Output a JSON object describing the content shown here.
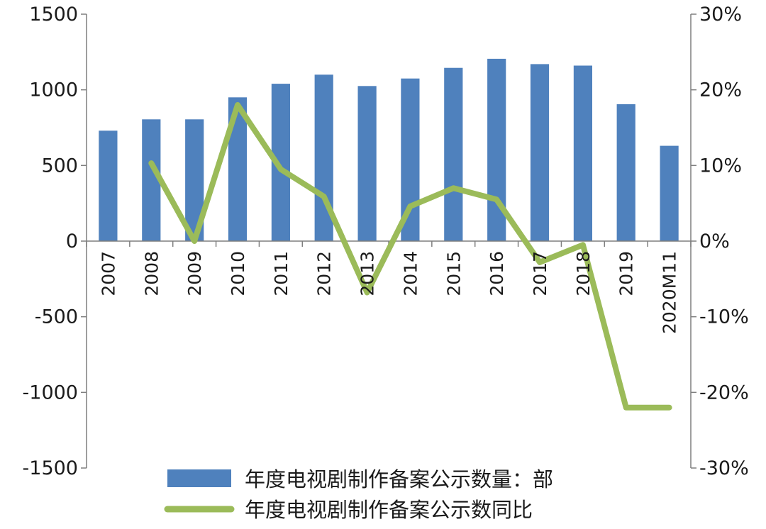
{
  "chart_data": {
    "type": "bar+line",
    "categories": [
      "2007",
      "2008",
      "2009",
      "2010",
      "2011",
      "2012",
      "2013",
      "2014",
      "2015",
      "2016",
      "2017",
      "2018",
      "2019",
      "2020M11"
    ],
    "series": [
      {
        "name": "年度电视剧制作备案公示数量：部",
        "type": "bar",
        "axis": "left",
        "color": "#4f81bd",
        "values": [
          730,
          805,
          805,
          950,
          1040,
          1100,
          1025,
          1075,
          1145,
          1205,
          1170,
          1160,
          905,
          630
        ]
      },
      {
        "name": "年度电视剧制作备案公示数同比",
        "type": "line",
        "axis": "right",
        "color": "#9bbb59",
        "values": [
          null,
          10.3,
          0.0,
          18.0,
          9.5,
          5.9,
          -6.8,
          4.6,
          7.0,
          5.5,
          -2.8,
          -0.5,
          -22.0,
          -22.0
        ]
      }
    ],
    "y_left": {
      "ylim": [
        -1500,
        1500
      ],
      "ticks": [
        "1500",
        "1000",
        "500",
        "0",
        "-500",
        "-1000",
        "-1500"
      ]
    },
    "y_right": {
      "ylim": [
        -30,
        30
      ],
      "ticks": [
        "30%",
        "20%",
        "10%",
        "0%",
        "-10%",
        "-20%",
        "-30%"
      ]
    },
    "grid": false,
    "legend_position": "bottom-center"
  }
}
